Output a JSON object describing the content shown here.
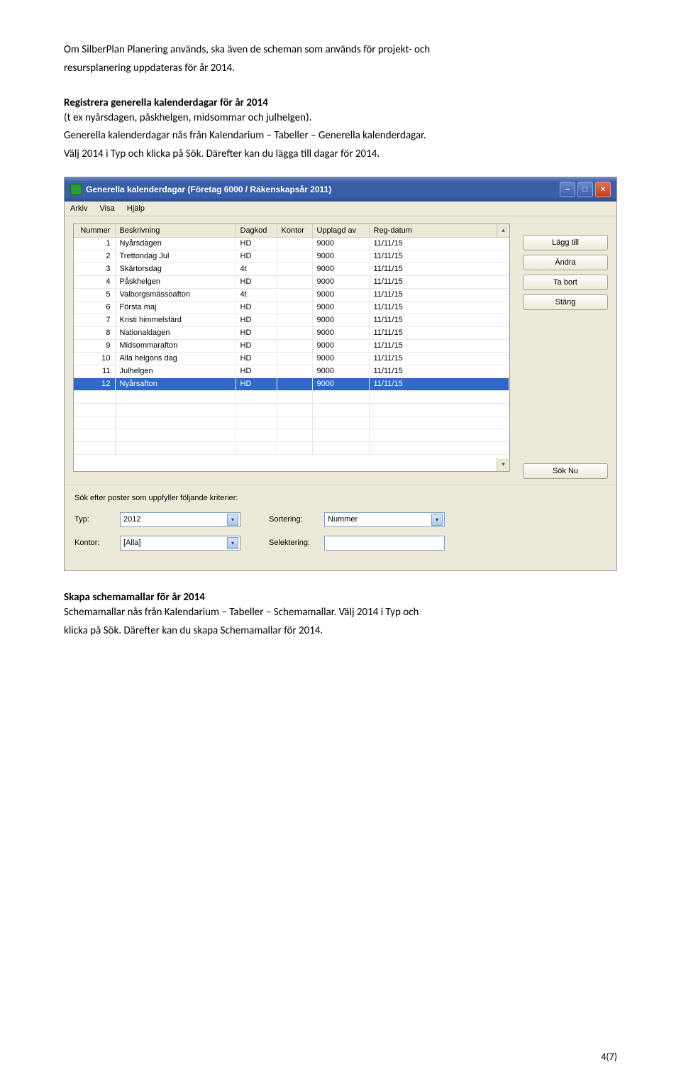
{
  "doc": {
    "intro1": "Om SilberPlan Planering används, ska även de scheman som används för projekt- och",
    "intro2": "resursplanering uppdateras för år 2014.",
    "heading1": "Registrera generella kalenderdagar för år 2014",
    "para1": "(t ex nyårsdagen, påskhelgen, midsommar och julhelgen).",
    "para2": "Generella kalenderdagar nås från Kalendarium – Tabeller – Generella kalenderdagar.",
    "para3": "Välj 2014 i Typ och klicka på Sök. Därefter kan du lägga till dagar för 2014.",
    "heading2": "Skapa schemamallar för år 2014",
    "para4": "Schemamallar nås från Kalendarium – Tabeller – Schemamallar. Välj 2014 i Typ och",
    "para5": "klicka på Sök. Därefter kan du skapa Schemamallar för 2014.",
    "page_num": "4(7)"
  },
  "app": {
    "title": "Generella kalenderdagar (Företag 6000 / Räkenskapsår 2011)",
    "menu": {
      "arkiv": "Arkiv",
      "visa": "Visa",
      "hjalp": "Hjälp"
    },
    "columns": {
      "nummer": "Nummer",
      "beskrivning": "Beskrivning",
      "dagkod": "Dagkod",
      "kontor": "Kontor",
      "upplagd": "Upplagd av",
      "regdatum": "Reg-datum"
    },
    "rows": [
      {
        "n": "1",
        "b": "Nyårsdagen",
        "d": "HD",
        "k": "",
        "u": "9000",
        "r": "11/11/15",
        "sel": false
      },
      {
        "n": "2",
        "b": "Trettondag Jul",
        "d": "HD",
        "k": "",
        "u": "9000",
        "r": "11/11/15",
        "sel": false
      },
      {
        "n": "3",
        "b": "Skärtorsdag",
        "d": "4t",
        "k": "",
        "u": "9000",
        "r": "11/11/15",
        "sel": false
      },
      {
        "n": "4",
        "b": "Påskhelgen",
        "d": "HD",
        "k": "",
        "u": "9000",
        "r": "11/11/15",
        "sel": false
      },
      {
        "n": "5",
        "b": "Valborgsmässoafton",
        "d": "4t",
        "k": "",
        "u": "9000",
        "r": "11/11/15",
        "sel": false
      },
      {
        "n": "6",
        "b": "Första maj",
        "d": "HD",
        "k": "",
        "u": "9000",
        "r": "11/11/15",
        "sel": false
      },
      {
        "n": "7",
        "b": "Kristi himmelsfärd",
        "d": "HD",
        "k": "",
        "u": "9000",
        "r": "11/11/15",
        "sel": false
      },
      {
        "n": "8",
        "b": "Nationaldagen",
        "d": "HD",
        "k": "",
        "u": "9000",
        "r": "11/11/15",
        "sel": false
      },
      {
        "n": "9",
        "b": "Midsommarafton",
        "d": "HD",
        "k": "",
        "u": "9000",
        "r": "11/11/15",
        "sel": false
      },
      {
        "n": "10",
        "b": "Alla helgons dag",
        "d": "HD",
        "k": "",
        "u": "9000",
        "r": "11/11/15",
        "sel": false
      },
      {
        "n": "11",
        "b": "Julhelgen",
        "d": "HD",
        "k": "",
        "u": "9000",
        "r": "11/11/15",
        "sel": false
      },
      {
        "n": "12",
        "b": "Nyårsafton",
        "d": "HD",
        "k": "",
        "u": "9000",
        "r": "11/11/15",
        "sel": true
      }
    ],
    "empty_rows": 5,
    "buttons": {
      "lagg_till": "Lägg till",
      "andra": "Ändra",
      "ta_bort": "Ta bort",
      "stang": "Stäng",
      "sok_nu": "Sök Nu"
    },
    "search": {
      "title": "Sök efter poster som uppfyller följande kriterier:",
      "typ_label": "Typ:",
      "typ_value": "2012",
      "sortering_label": "Sortering:",
      "sortering_value": "Nummer",
      "kontor_label": "Kontor:",
      "kontor_value": "[Alla]",
      "selektering_label": "Selektering:",
      "selektering_value": ""
    }
  }
}
